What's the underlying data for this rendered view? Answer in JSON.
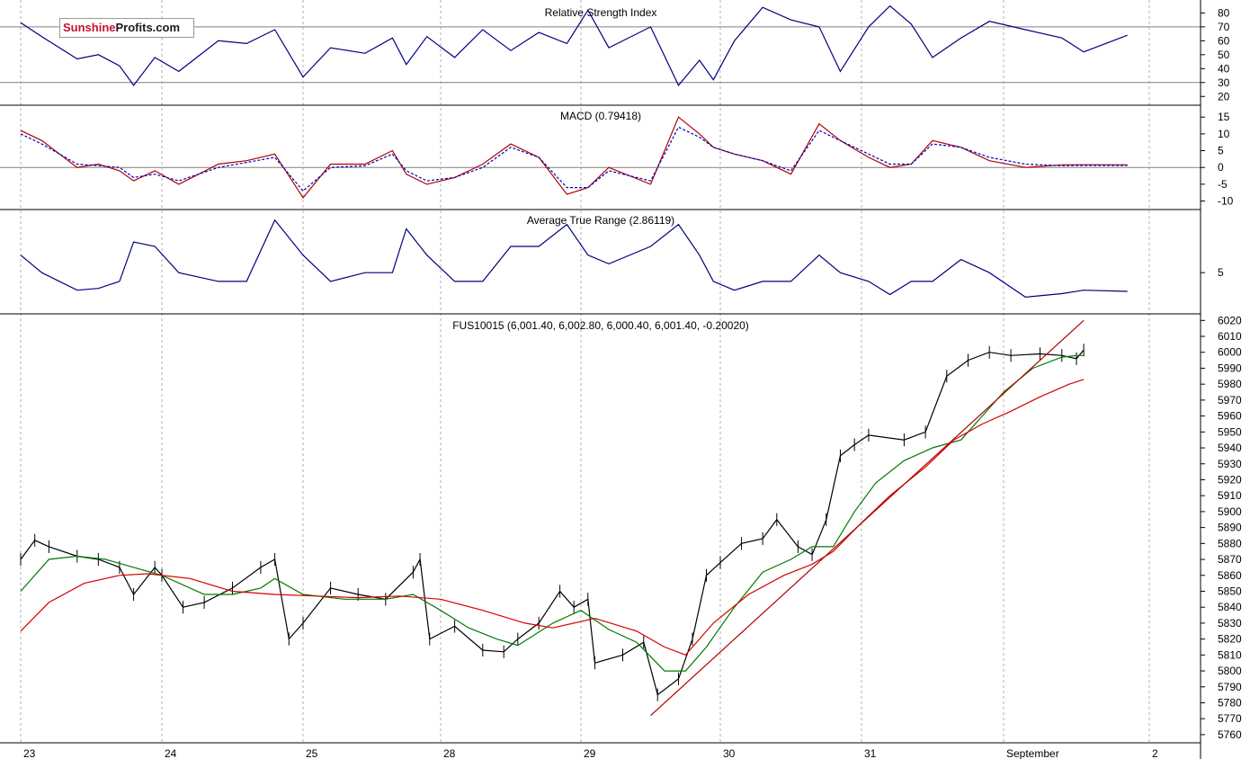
{
  "logo": {
    "part1": "Sunshine",
    "part2": "Profits.com"
  },
  "colors": {
    "price": "#000000",
    "ma_short": "#007a00",
    "ma_long": "#d40000",
    "trendline": "#b00000",
    "rsi": "#000080",
    "macd": "#b00000",
    "macd_signal": "#0000c0",
    "atr": "#000080",
    "grid": "#b0b0b0",
    "level": "#808080",
    "border": "#000000"
  },
  "chart_data": [
    {
      "type": "line",
      "title": "Relative Strength Index",
      "ylim": [
        15,
        88
      ],
      "yticks": [
        20,
        30,
        40,
        50,
        60,
        70,
        80
      ],
      "levels": [
        30,
        70
      ],
      "x": [
        0,
        0.15,
        0.4,
        0.55,
        0.7,
        0.8,
        0.95,
        1.12,
        1.4,
        1.6,
        1.8,
        2.0,
        2.2,
        2.45,
        2.65,
        2.75,
        2.9,
        3.1,
        3.3,
        3.5,
        3.7,
        3.9,
        4.05,
        4.2,
        4.5,
        4.7,
        4.85,
        4.95,
        5.1,
        5.3,
        5.5,
        5.7,
        5.85,
        6.05,
        6.2,
        6.35,
        6.5,
        6.7,
        6.9,
        7.15,
        7.4,
        7.55,
        7.85
      ],
      "series": [
        {
          "values": [
            73,
            63,
            47,
            50,
            42,
            28,
            48,
            38,
            60,
            58,
            68,
            34,
            55,
            51,
            62,
            43,
            63,
            48,
            68,
            53,
            66,
            58,
            82,
            55,
            70,
            28,
            46,
            32,
            60,
            84,
            75,
            70,
            38,
            70,
            85,
            72,
            48,
            62,
            74,
            68,
            62,
            52,
            64
          ]
        }
      ]
    },
    {
      "type": "line",
      "title": "MACD (0.79418)",
      "ylim": [
        -12,
        18
      ],
      "yticks": [
        -10,
        -5,
        0,
        5,
        10,
        15
      ],
      "levels": [
        0
      ],
      "x": [
        0,
        0.15,
        0.4,
        0.55,
        0.7,
        0.8,
        0.95,
        1.12,
        1.4,
        1.6,
        1.8,
        2.0,
        2.2,
        2.45,
        2.65,
        2.75,
        2.9,
        3.1,
        3.3,
        3.5,
        3.7,
        3.9,
        4.05,
        4.2,
        4.5,
        4.7,
        4.85,
        4.95,
        5.1,
        5.3,
        5.5,
        5.7,
        5.85,
        6.05,
        6.2,
        6.35,
        6.5,
        6.7,
        6.9,
        7.15,
        7.4,
        7.55,
        7.85
      ],
      "series": [
        {
          "values": [
            11,
            8,
            0,
            1,
            -1,
            -4,
            -1,
            -5,
            1,
            2,
            4,
            -9,
            1,
            1,
            5,
            -2,
            -5,
            -3,
            1,
            7,
            3,
            -8,
            -6,
            0,
            -5,
            15,
            10,
            6,
            4,
            2,
            -2,
            13,
            8,
            3,
            0,
            1,
            8,
            6,
            2,
            0,
            0.79,
            0.8,
            0.79
          ]
        },
        {
          "values": [
            10,
            7,
            1,
            0.5,
            0,
            -3,
            -2,
            -4,
            0,
            1.5,
            3,
            -7,
            0,
            0.5,
            4,
            -1,
            -4,
            -3,
            0,
            6,
            3,
            -6,
            -6,
            -1,
            -4,
            12,
            9,
            6,
            4,
            2,
            -1,
            11,
            8,
            4,
            1,
            1,
            7,
            6,
            3,
            1,
            0.5,
            0.6,
            0.6
          ]
        }
      ]
    },
    {
      "type": "line",
      "title": "Average True Range (2.86119)",
      "ylim": [
        0.5,
        12
      ],
      "yticks": [
        5
      ],
      "x": [
        0,
        0.15,
        0.4,
        0.55,
        0.7,
        0.8,
        0.95,
        1.12,
        1.4,
        1.6,
        1.8,
        2.0,
        2.2,
        2.45,
        2.65,
        2.75,
        2.9,
        3.1,
        3.3,
        3.5,
        3.7,
        3.9,
        4.05,
        4.2,
        4.5,
        4.7,
        4.85,
        4.95,
        5.1,
        5.3,
        5.5,
        5.7,
        5.85,
        6.05,
        6.2,
        6.35,
        6.5,
        6.7,
        6.9,
        7.15,
        7.4,
        7.55,
        7.85
      ],
      "series": [
        {
          "values": [
            7,
            5,
            3,
            3.2,
            4,
            8.5,
            8,
            5,
            4,
            4,
            11,
            7,
            4,
            5,
            5,
            10,
            7,
            4,
            4,
            8,
            8,
            10.5,
            7,
            6,
            8,
            10.5,
            7,
            4,
            3,
            4,
            4,
            7,
            5,
            4,
            2.5,
            4,
            4,
            6.5,
            5,
            2.2,
            2.6,
            3,
            2.86
          ]
        }
      ]
    },
    {
      "type": "line",
      "title": "FUS10015 (6,001.40, 6,002.80, 6,000.40, 6,001.40, -0.20020)",
      "ylim": [
        5756,
        6023
      ],
      "yticks": [
        5760,
        5770,
        5780,
        5790,
        5800,
        5810,
        5820,
        5830,
        5840,
        5850,
        5860,
        5870,
        5880,
        5890,
        5900,
        5910,
        5920,
        5930,
        5940,
        5950,
        5960,
        5970,
        5980,
        5990,
        6000,
        6010,
        6020
      ],
      "x_tick_labels": [
        "23",
        "24",
        "25",
        "28",
        "29",
        "30",
        "31",
        "September",
        "2"
      ],
      "series": [
        {
          "name": "price",
          "x": [
            0,
            0.1,
            0.2,
            0.4,
            0.55,
            0.7,
            0.8,
            0.95,
            1.0,
            1.15,
            1.3,
            1.5,
            1.7,
            1.8,
            1.9,
            2.0,
            2.2,
            2.4,
            2.6,
            2.8,
            2.85,
            2.92,
            3.1,
            3.3,
            3.45,
            3.55,
            3.7,
            3.85,
            3.95,
            4.05,
            4.1,
            4.3,
            4.45,
            4.55,
            4.7,
            4.8,
            4.9,
            5.0,
            5.15,
            5.3,
            5.4,
            5.55,
            5.65,
            5.75,
            5.85,
            5.95,
            6.05,
            6.3,
            6.45,
            6.6,
            6.75,
            6.9,
            7.05,
            7.25,
            7.4,
            7.5,
            7.55
          ],
          "values": [
            5870,
            5882,
            5878,
            5872,
            5870,
            5865,
            5848,
            5865,
            5860,
            5840,
            5843,
            5852,
            5865,
            5870,
            5820,
            5830,
            5852,
            5848,
            5845,
            5862,
            5870,
            5820,
            5828,
            5813,
            5812,
            5820,
            5830,
            5850,
            5840,
            5845,
            5805,
            5810,
            5818,
            5785,
            5795,
            5820,
            5860,
            5868,
            5880,
            5883,
            5895,
            5878,
            5873,
            5895,
            5935,
            5942,
            5948,
            5945,
            5950,
            5985,
            5995,
            6000,
            5998,
            5999,
            5998,
            5996,
            6001.4
          ]
        },
        {
          "name": "",
          "x": [
            0,
            0.2,
            0.4,
            0.6,
            0.8,
            1.0,
            1.3,
            1.5,
            1.7,
            1.8,
            2.0,
            2.3,
            2.6,
            2.8,
            3.0,
            3.2,
            3.4,
            3.55,
            3.8,
            4.0,
            4.2,
            4.4,
            4.6,
            4.75,
            4.9,
            5.1,
            5.3,
            5.5,
            5.65,
            5.8,
            5.95,
            6.1,
            6.3,
            6.5,
            6.7,
            6.85,
            7.0,
            7.2,
            7.4,
            7.5,
            7.55
          ],
          "values": [
            5850,
            5870,
            5872,
            5870,
            5865,
            5860,
            5848,
            5848,
            5852,
            5858,
            5848,
            5845,
            5845,
            5848,
            5838,
            5827,
            5820,
            5816,
            5830,
            5838,
            5826,
            5818,
            5800,
            5800,
            5815,
            5840,
            5862,
            5870,
            5878,
            5878,
            5900,
            5918,
            5932,
            5940,
            5945,
            5960,
            5975,
            5990,
            5997,
            5998,
            5998
          ]
        },
        {
          "name": "",
          "x": [
            0,
            0.2,
            0.45,
            0.7,
            0.9,
            1.2,
            1.5,
            1.8,
            2.1,
            2.4,
            2.7,
            3.0,
            3.3,
            3.6,
            3.8,
            4.1,
            4.4,
            4.6,
            4.75,
            4.95,
            5.2,
            5.45,
            5.65,
            5.8,
            6.0,
            6.2,
            6.45,
            6.65,
            6.85,
            7.05,
            7.25,
            7.45,
            7.55
          ],
          "values": [
            5825,
            5843,
            5855,
            5860,
            5861,
            5858,
            5850,
            5848,
            5847,
            5846,
            5847,
            5845,
            5838,
            5830,
            5827,
            5833,
            5825,
            5815,
            5810,
            5830,
            5848,
            5860,
            5867,
            5875,
            5893,
            5910,
            5928,
            5945,
            5955,
            5963,
            5972,
            5980,
            5983
          ]
        },
        {
          "name": "",
          "x": [
            4.5,
            7.55
          ],
          "values": [
            5772,
            6020
          ]
        }
      ]
    }
  ]
}
